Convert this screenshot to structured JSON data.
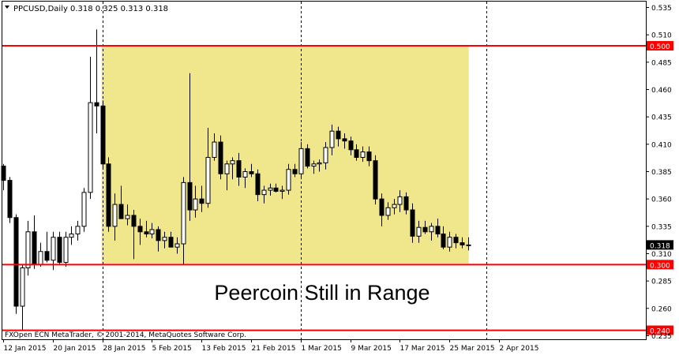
{
  "window": {
    "symbol_line": "PPCUSD,Daily",
    "ohlc_line": "0.318 0.325 0.313 0.318",
    "footer": "FXOpen ECN MetaTrader, © 2001-2014, MetaQuotes Software Corp."
  },
  "colors": {
    "background": "#ffffff",
    "candle": "#000000",
    "range_box": "#f0e68c",
    "level_line": "#ff0000",
    "level_label_bg": "#ff0000",
    "level_label_text": "#ffffff",
    "price_label_bg": "#000000",
    "price_label_text": "#ffffff",
    "separator": "#000000"
  },
  "chart_data": {
    "type": "candlestick",
    "title": "Peercoin Still in Range",
    "xlabel": "",
    "ylabel": "",
    "ylim": [
      0.235,
      0.535
    ],
    "y_ticks": [
      "0.535",
      "0.510",
      "0.485",
      "0.460",
      "0.435",
      "0.410",
      "0.385",
      "0.360",
      "0.335",
      "0.310",
      "0.285",
      "0.260",
      "0.235"
    ],
    "x_ticks": [
      {
        "label": "12 Jan 2015",
        "index": 0
      },
      {
        "label": "20 Jan 2015",
        "index": 8
      },
      {
        "label": "28 Jan 2015",
        "index": 16
      },
      {
        "label": "5 Feb 2015",
        "index": 24
      },
      {
        "label": "13 Feb 2015",
        "index": 32
      },
      {
        "label": "21 Feb 2015",
        "index": 40
      },
      {
        "label": "1 Mar 2015",
        "index": 48
      },
      {
        "label": "9 Mar 2015",
        "index": 56
      },
      {
        "label": "17 Mar 2015",
        "index": 64
      },
      {
        "label": "25 Mar 2015",
        "index": 72
      },
      {
        "label": "2 Apr 2015",
        "index": 80
      }
    ],
    "period_separators": [
      16,
      48,
      78
    ],
    "levels": [
      {
        "value": 0.5,
        "label": "0.500"
      },
      {
        "value": 0.3,
        "label": "0.300"
      },
      {
        "value": 0.24,
        "label": "0.240"
      }
    ],
    "current_price": {
      "value": 0.318,
      "label": "0.318"
    },
    "range_box": {
      "start_index": 16,
      "end_index": 75,
      "top": 0.5,
      "bottom": 0.301
    },
    "candles": [
      {
        "o": 0.39,
        "h": 0.392,
        "l": 0.368,
        "c": 0.377
      },
      {
        "o": 0.377,
        "h": 0.38,
        "l": 0.338,
        "c": 0.343
      },
      {
        "o": 0.343,
        "h": 0.346,
        "l": 0.255,
        "c": 0.262
      },
      {
        "o": 0.262,
        "h": 0.3,
        "l": 0.24,
        "c": 0.297
      },
      {
        "o": 0.297,
        "h": 0.34,
        "l": 0.29,
        "c": 0.33
      },
      {
        "o": 0.33,
        "h": 0.345,
        "l": 0.296,
        "c": 0.3
      },
      {
        "o": 0.3,
        "h": 0.32,
        "l": 0.298,
        "c": 0.312
      },
      {
        "o": 0.312,
        "h": 0.33,
        "l": 0.302,
        "c": 0.304
      },
      {
        "o": 0.304,
        "h": 0.33,
        "l": 0.295,
        "c": 0.325
      },
      {
        "o": 0.325,
        "h": 0.33,
        "l": 0.3,
        "c": 0.302
      },
      {
        "o": 0.302,
        "h": 0.33,
        "l": 0.298,
        "c": 0.325
      },
      {
        "o": 0.325,
        "h": 0.335,
        "l": 0.318,
        "c": 0.328
      },
      {
        "o": 0.328,
        "h": 0.34,
        "l": 0.322,
        "c": 0.335
      },
      {
        "o": 0.335,
        "h": 0.37,
        "l": 0.33,
        "c": 0.366
      },
      {
        "o": 0.366,
        "h": 0.49,
        "l": 0.36,
        "c": 0.448
      },
      {
        "o": 0.448,
        "h": 0.515,
        "l": 0.42,
        "c": 0.445
      },
      {
        "o": 0.445,
        "h": 0.45,
        "l": 0.388,
        "c": 0.392
      },
      {
        "o": 0.392,
        "h": 0.398,
        "l": 0.33,
        "c": 0.335
      },
      {
        "o": 0.335,
        "h": 0.365,
        "l": 0.322,
        "c": 0.355
      },
      {
        "o": 0.355,
        "h": 0.372,
        "l": 0.345,
        "c": 0.342
      },
      {
        "o": 0.342,
        "h": 0.355,
        "l": 0.336,
        "c": 0.345
      },
      {
        "o": 0.345,
        "h": 0.35,
        "l": 0.305,
        "c": 0.335
      },
      {
        "o": 0.335,
        "h": 0.342,
        "l": 0.318,
        "c": 0.33
      },
      {
        "o": 0.33,
        "h": 0.34,
        "l": 0.325,
        "c": 0.328
      },
      {
        "o": 0.328,
        "h": 0.338,
        "l": 0.324,
        "c": 0.332
      },
      {
        "o": 0.332,
        "h": 0.335,
        "l": 0.312,
        "c": 0.322
      },
      {
        "o": 0.322,
        "h": 0.33,
        "l": 0.315,
        "c": 0.325
      },
      {
        "o": 0.325,
        "h": 0.33,
        "l": 0.318,
        "c": 0.316
      },
      {
        "o": 0.316,
        "h": 0.325,
        "l": 0.31,
        "c": 0.319
      },
      {
        "o": 0.319,
        "h": 0.38,
        "l": 0.3,
        "c": 0.375
      },
      {
        "o": 0.375,
        "h": 0.475,
        "l": 0.34,
        "c": 0.35
      },
      {
        "o": 0.35,
        "h": 0.372,
        "l": 0.343,
        "c": 0.36
      },
      {
        "o": 0.36,
        "h": 0.372,
        "l": 0.348,
        "c": 0.356
      },
      {
        "o": 0.356,
        "h": 0.425,
        "l": 0.352,
        "c": 0.398
      },
      {
        "o": 0.398,
        "h": 0.42,
        "l": 0.395,
        "c": 0.412
      },
      {
        "o": 0.412,
        "h": 0.418,
        "l": 0.378,
        "c": 0.383
      },
      {
        "o": 0.383,
        "h": 0.395,
        "l": 0.368,
        "c": 0.392
      },
      {
        "o": 0.392,
        "h": 0.398,
        "l": 0.378,
        "c": 0.395
      },
      {
        "o": 0.395,
        "h": 0.402,
        "l": 0.372,
        "c": 0.38
      },
      {
        "o": 0.38,
        "h": 0.388,
        "l": 0.37,
        "c": 0.385
      },
      {
        "o": 0.385,
        "h": 0.392,
        "l": 0.38,
        "c": 0.383
      },
      {
        "o": 0.383,
        "h": 0.387,
        "l": 0.358,
        "c": 0.364
      },
      {
        "o": 0.364,
        "h": 0.372,
        "l": 0.356,
        "c": 0.368
      },
      {
        "o": 0.368,
        "h": 0.374,
        "l": 0.363,
        "c": 0.37
      },
      {
        "o": 0.37,
        "h": 0.374,
        "l": 0.366,
        "c": 0.367
      },
      {
        "o": 0.367,
        "h": 0.372,
        "l": 0.36,
        "c": 0.368
      },
      {
        "o": 0.368,
        "h": 0.392,
        "l": 0.364,
        "c": 0.387
      },
      {
        "o": 0.387,
        "h": 0.392,
        "l": 0.38,
        "c": 0.383
      },
      {
        "o": 0.383,
        "h": 0.412,
        "l": 0.378,
        "c": 0.406
      },
      {
        "o": 0.406,
        "h": 0.41,
        "l": 0.388,
        "c": 0.39
      },
      {
        "o": 0.39,
        "h": 0.395,
        "l": 0.383,
        "c": 0.392
      },
      {
        "o": 0.392,
        "h": 0.396,
        "l": 0.385,
        "c": 0.393
      },
      {
        "o": 0.393,
        "h": 0.412,
        "l": 0.387,
        "c": 0.407
      },
      {
        "o": 0.407,
        "h": 0.428,
        "l": 0.4,
        "c": 0.422
      },
      {
        "o": 0.422,
        "h": 0.426,
        "l": 0.408,
        "c": 0.415
      },
      {
        "o": 0.415,
        "h": 0.42,
        "l": 0.406,
        "c": 0.413
      },
      {
        "o": 0.413,
        "h": 0.417,
        "l": 0.4,
        "c": 0.405
      },
      {
        "o": 0.405,
        "h": 0.41,
        "l": 0.395,
        "c": 0.398
      },
      {
        "o": 0.398,
        "h": 0.408,
        "l": 0.394,
        "c": 0.403
      },
      {
        "o": 0.403,
        "h": 0.408,
        "l": 0.39,
        "c": 0.395
      },
      {
        "o": 0.395,
        "h": 0.4,
        "l": 0.355,
        "c": 0.36
      },
      {
        "o": 0.36,
        "h": 0.365,
        "l": 0.335,
        "c": 0.345
      },
      {
        "o": 0.345,
        "h": 0.357,
        "l": 0.341,
        "c": 0.352
      },
      {
        "o": 0.352,
        "h": 0.36,
        "l": 0.346,
        "c": 0.355
      },
      {
        "o": 0.355,
        "h": 0.368,
        "l": 0.348,
        "c": 0.362
      },
      {
        "o": 0.362,
        "h": 0.366,
        "l": 0.346,
        "c": 0.35
      },
      {
        "o": 0.35,
        "h": 0.356,
        "l": 0.32,
        "c": 0.326
      },
      {
        "o": 0.326,
        "h": 0.34,
        "l": 0.32,
        "c": 0.334
      },
      {
        "o": 0.334,
        "h": 0.34,
        "l": 0.328,
        "c": 0.33
      },
      {
        "o": 0.33,
        "h": 0.338,
        "l": 0.322,
        "c": 0.335
      },
      {
        "o": 0.335,
        "h": 0.342,
        "l": 0.325,
        "c": 0.328
      },
      {
        "o": 0.328,
        "h": 0.335,
        "l": 0.314,
        "c": 0.316
      },
      {
        "o": 0.316,
        "h": 0.33,
        "l": 0.312,
        "c": 0.325
      },
      {
        "o": 0.325,
        "h": 0.328,
        "l": 0.315,
        "c": 0.32
      },
      {
        "o": 0.32,
        "h": 0.325,
        "l": 0.315,
        "c": 0.318
      },
      {
        "o": 0.318,
        "h": 0.325,
        "l": 0.313,
        "c": 0.318
      }
    ]
  }
}
